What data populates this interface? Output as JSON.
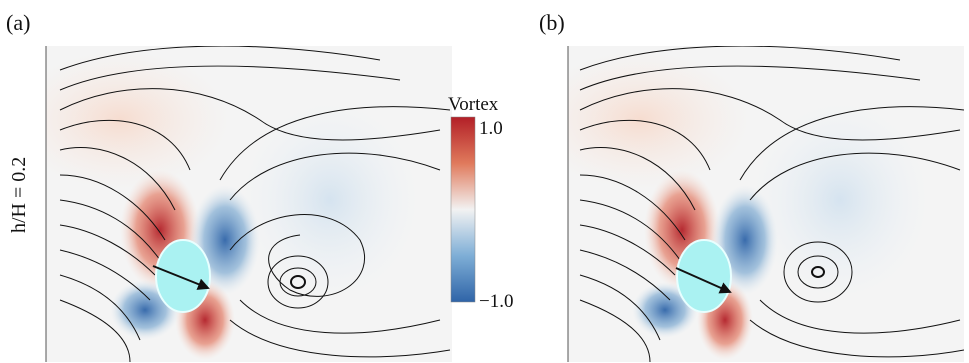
{
  "figure": {
    "panels": [
      {
        "label": "(a)"
      },
      {
        "label": "(b)"
      }
    ],
    "row_label": "h/H = 0.2",
    "colorbar": {
      "title": "Vortex",
      "max_label": "1.0",
      "min_label": "−1.0",
      "colors": [
        "#3a6fb0",
        "#9fc3df",
        "#f2f2f2",
        "#f0b49a",
        "#b21f27"
      ]
    },
    "body_color": "#aaf2f2",
    "streamline_color": "#111111"
  }
}
